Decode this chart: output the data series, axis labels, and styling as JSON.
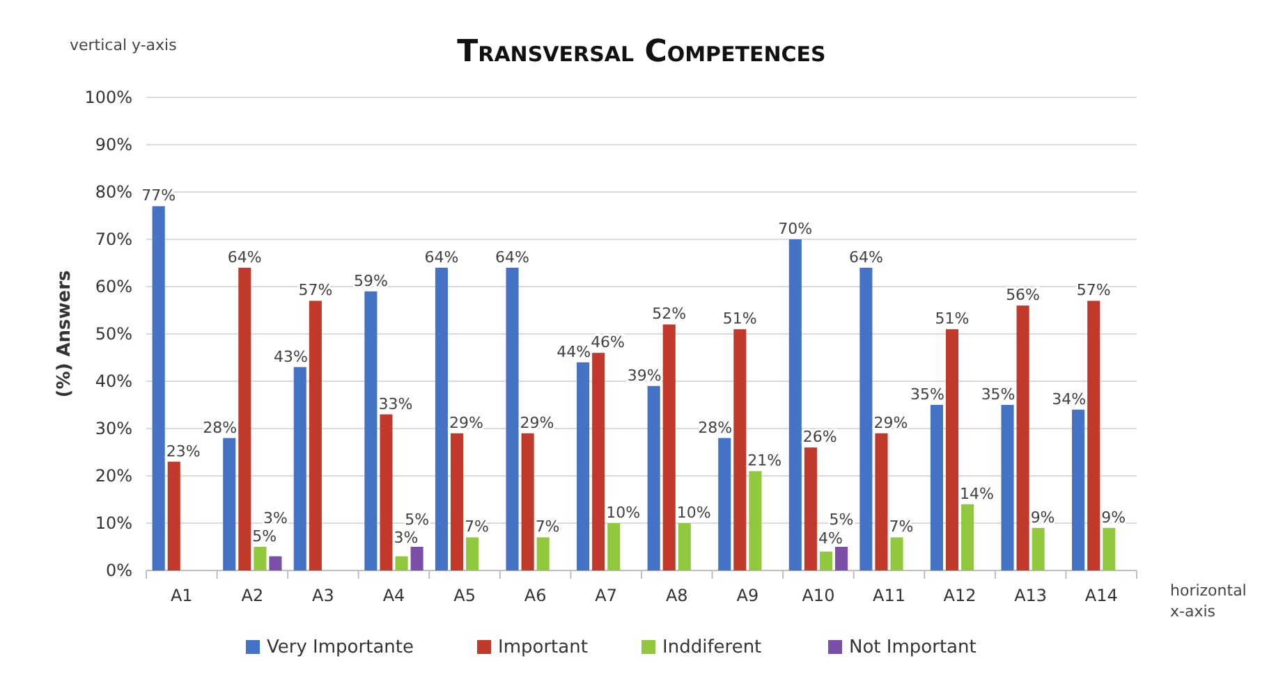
{
  "chart_data": {
    "type": "bar",
    "title": "Transversal Competences",
    "ylabel": "(%) Answers",
    "annotations": [
      "vertical y-axis",
      "horizontal x-axis"
    ],
    "categories": [
      "A1",
      "A2",
      "A3",
      "A4",
      "A5",
      "A6",
      "A7",
      "A8",
      "A9",
      "A10",
      "A11",
      "A12",
      "A13",
      "A14"
    ],
    "series": [
      {
        "name": "Very Importante",
        "color": "#4472c4",
        "values": [
          77,
          28,
          43,
          59,
          64,
          64,
          44,
          39,
          28,
          70,
          64,
          35,
          35,
          34
        ],
        "value_labels": [
          "77%",
          "28%",
          "43%",
          "59%",
          "64%",
          "64%",
          "44%",
          "39%",
          "28%",
          "70%",
          "64%",
          "35%",
          "35%",
          "34%"
        ]
      },
      {
        "name": "Important",
        "color": "#c0392b",
        "values": [
          23,
          64,
          57,
          33,
          29,
          29,
          46,
          52,
          51,
          26,
          29,
          51,
          56,
          57
        ],
        "value_labels": [
          "23%",
          "64%",
          "57%",
          "33%",
          "29%",
          "29%",
          "46%",
          "52%",
          "51%",
          "26%",
          "29%",
          "51%",
          "56%",
          "57%"
        ]
      },
      {
        "name": "Inddiferent",
        "color": "#92c83e",
        "values": [
          null,
          5,
          null,
          3,
          7,
          7,
          10,
          10,
          21,
          4,
          7,
          14,
          9,
          9
        ],
        "value_labels": [
          null,
          "5%",
          null,
          "3%",
          "7%",
          "7%",
          "10%",
          "10%",
          "21%",
          "4%",
          "7%",
          "14%",
          "9%",
          "9%"
        ]
      },
      {
        "name": "Not Important",
        "color": "#7b4fa8",
        "values": [
          null,
          3,
          null,
          5,
          null,
          null,
          null,
          null,
          null,
          5,
          null,
          null,
          null,
          null
        ],
        "value_labels": [
          null,
          "3%",
          null,
          "5%",
          null,
          null,
          null,
          null,
          null,
          "5%",
          null,
          null,
          null,
          null
        ]
      }
    ],
    "ylim": [
      0,
      100
    ],
    "yticks": [
      {
        "value": 0,
        "label": "0%"
      },
      {
        "value": 10,
        "label": "10%"
      },
      {
        "value": 20,
        "label": "20%"
      },
      {
        "value": 30,
        "label": "30%"
      },
      {
        "value": 40,
        "label": "40%"
      },
      {
        "value": 50,
        "label": "50%"
      },
      {
        "value": 60,
        "label": "60%"
      },
      {
        "value": 70,
        "label": "70%"
      },
      {
        "value": 80,
        "label": "80%"
      },
      {
        "value": 90,
        "label": "90%"
      },
      {
        "value": 100,
        "label": "100%"
      }
    ],
    "grid": "y",
    "legend": "bottom"
  }
}
